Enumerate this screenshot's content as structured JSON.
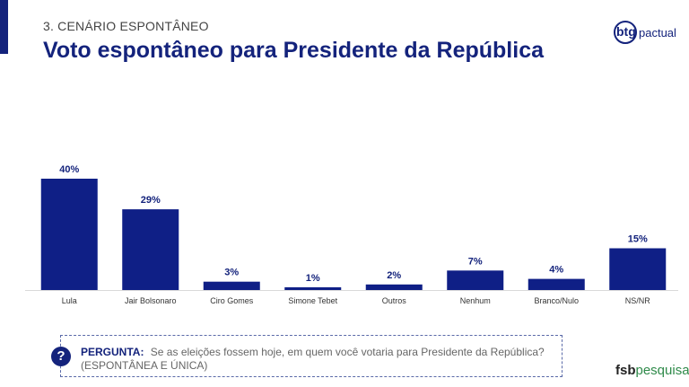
{
  "header": {
    "section": "3. CENÁRIO ESPONTÂNEO",
    "title": "Voto espontâneo para Presidente da República"
  },
  "logos": {
    "btg_mark": "btg",
    "btg_text": "pactual",
    "fsb_bold": "fsb",
    "fsb_text": "pesquisa"
  },
  "question": {
    "icon": "?",
    "label": "PERGUNTA:",
    "text": "Se as eleições fossem hoje, em quem você votaria para Presidente da República?",
    "note": "(ESPONTÂNEA E ÚNICA)"
  },
  "chart_data": {
    "type": "bar",
    "categories": [
      "Lula",
      "Jair Bolsonaro",
      "Ciro Gomes",
      "Simone Tebet",
      "Outros",
      "Nenhum",
      "Branco/Nulo",
      "NS/NR"
    ],
    "values": [
      40,
      29,
      3,
      1,
      2,
      7,
      4,
      15
    ],
    "value_labels": [
      "40%",
      "29%",
      "3%",
      "1%",
      "2%",
      "7%",
      "4%",
      "15%"
    ],
    "unit": "%",
    "bar_color": "#0f1f86",
    "ylim": [
      0,
      40
    ],
    "title": "",
    "xlabel": "",
    "ylabel": "",
    "grid": false,
    "legend": "none"
  }
}
